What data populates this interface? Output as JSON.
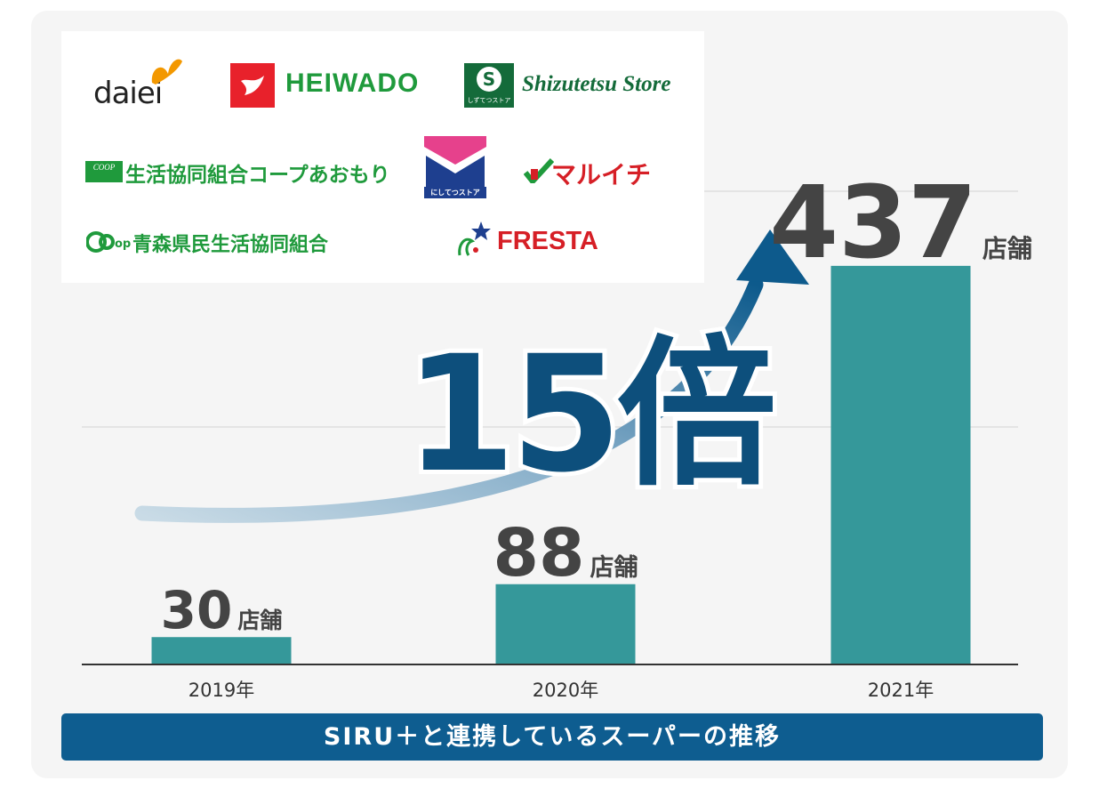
{
  "chart_data": {
    "type": "bar",
    "categories": [
      "2019年",
      "2020年",
      "2021年"
    ],
    "values": [
      30,
      88,
      437
    ],
    "value_labels": [
      "30",
      "88",
      "437"
    ],
    "unit": "店舗",
    "title": "SIRU＋と連携しているスーパーの推移",
    "ylim": [
      0,
      550
    ],
    "grid": true,
    "bar_color": "#35989a",
    "annotation": "15倍",
    "annotation_color": "#0d4f7c"
  },
  "logos": {
    "daiei": "daiei",
    "heiwado": "HEIWADO",
    "shizutetsu": "Shizutetsu Store",
    "shizutetsu_kana": "しずてつストア",
    "coop_aomori": "生活協同組合コープあおもり",
    "coop_badge": "COOP",
    "nishitetsu": "にしてつストア",
    "maruichi": "マルイチ",
    "aomori_coop": "青森県民生活協同組合",
    "coop_mark": "CO·OP",
    "fresta": "FRESTA"
  }
}
